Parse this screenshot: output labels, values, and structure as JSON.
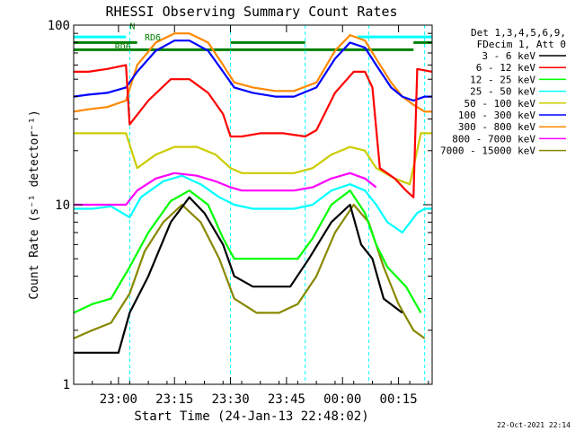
{
  "chart_data": {
    "type": "line",
    "title": "RHESSI Observing Summary Count Rates",
    "xlabel": "Start Time (24-Jan-13 22:48:02)",
    "ylabel": "Count Rate (s⁻¹ detector⁻¹)",
    "y_scale": "log",
    "ylim": [
      1,
      100
    ],
    "xlim": [
      "22:48",
      "00:24"
    ],
    "x_ticks": [
      "23:00",
      "23:15",
      "23:30",
      "23:45",
      "00:00",
      "00:15"
    ],
    "y_ticks": [
      "1",
      "10",
      "100"
    ],
    "grid": false,
    "legend_position": "top-right",
    "legend_header": [
      "Det 1,3,4,5,6,9,",
      "FDecim 1, Att 0"
    ],
    "footer_date": "22-Oct-2021 22:14",
    "annotations": [
      {
        "text": "N",
        "x": "23:03",
        "y": 95
      },
      {
        "text": "RD6",
        "x": "23:07",
        "y": 82
      },
      {
        "text": "RD6",
        "x": "22:59",
        "y": 73
      }
    ],
    "flag_bars": [
      {
        "color": "#00ffff",
        "x_start": "22:48",
        "x_end": "23:02",
        "y": 86
      },
      {
        "color": "#00ffff",
        "x_start": "00:04",
        "x_end": "00:24",
        "y": 86
      },
      {
        "color": "#007f00",
        "x_start": "22:48",
        "x_end": "23:05",
        "y": 80
      },
      {
        "color": "#007f00",
        "x_start": "23:30",
        "x_end": "23:50",
        "y": 80
      },
      {
        "color": "#007f00",
        "x_start": "00:19",
        "x_end": "00:24",
        "y": 80
      },
      {
        "color": "#007f00",
        "x_start": "22:48",
        "x_end": "00:19",
        "y": 73
      }
    ],
    "gap_lines": [
      "23:03",
      "23:30",
      "23:50",
      "00:07",
      "00:22"
    ],
    "series": [
      {
        "name": "3 - 6 keV",
        "color": "#000000",
        "x": [
          "22:48",
          "23:00",
          "23:03",
          "23:08",
          "23:14",
          "23:19",
          "23:23",
          "23:28",
          "23:31",
          "23:36",
          "23:42",
          "23:46",
          "23:51",
          "23:57",
          "00:02",
          "00:05",
          "00:08",
          "00:11",
          "00:16"
        ],
        "y": [
          1.5,
          1.5,
          2.5,
          4,
          8,
          11,
          9,
          6,
          4,
          3.5,
          3.5,
          3.5,
          5,
          8,
          10,
          6,
          5,
          3,
          2.5
        ]
      },
      {
        "name": "6 - 12 keV",
        "color": "#ff0000",
        "x": [
          "22:48",
          "22:52",
          "22:57",
          "23:02",
          "23:03",
          "23:08",
          "23:14",
          "23:19",
          "23:24",
          "23:28",
          "23:30",
          "23:33",
          "23:38",
          "23:44",
          "23:50",
          "23:53",
          "23:58",
          "00:03",
          "00:06",
          "00:08",
          "00:10",
          "00:14",
          "00:17",
          "00:19",
          "00:20",
          "00:24"
        ],
        "y": [
          55,
          55,
          57,
          60,
          28,
          38,
          50,
          50,
          42,
          32,
          24,
          24,
          25,
          25,
          24,
          26,
          42,
          55,
          55,
          45,
          16,
          14,
          12,
          11,
          57,
          55
        ]
      },
      {
        "name": "12 - 25 keV",
        "color": "#00ff00",
        "x": [
          "22:48",
          "22:53",
          "22:58",
          "23:03",
          "23:08",
          "23:14",
          "23:19",
          "23:24",
          "23:28",
          "23:31",
          "23:36",
          "23:43",
          "23:48",
          "23:52",
          "23:57",
          "00:02",
          "00:06",
          "00:09",
          "00:12",
          "00:17",
          "00:21"
        ],
        "y": [
          2.5,
          2.8,
          3,
          4.5,
          7,
          10.5,
          12,
          10,
          6.5,
          5,
          5,
          5,
          5,
          6.5,
          10,
          12,
          9,
          6,
          4.5,
          3.5,
          2.5
        ]
      },
      {
        "name": "25 - 50 keV",
        "color": "#00ffff",
        "x": [
          "22:48",
          "22:53",
          "22:58",
          "23:03",
          "23:06",
          "23:12",
          "23:17",
          "23:22",
          "23:27",
          "23:31",
          "23:36",
          "23:42",
          "23:47",
          "23:52",
          "23:57",
          "00:02",
          "00:06",
          "00:09",
          "00:12",
          "00:16",
          "00:20",
          "00:22",
          "00:24"
        ],
        "y": [
          9.5,
          9.5,
          9.8,
          8.5,
          11,
          13.5,
          14.5,
          13,
          11,
          10,
          9.5,
          9.5,
          9.5,
          10,
          12,
          13,
          12,
          10,
          8,
          7,
          9,
          9.5,
          9.5
        ]
      },
      {
        "name": "50 - 100 keV",
        "color": "#cccc00",
        "x": [
          "22:48",
          "22:55",
          "23:02",
          "23:05",
          "23:10",
          "23:15",
          "23:21",
          "23:26",
          "23:30",
          "23:33",
          "23:40",
          "23:47",
          "23:52",
          "23:57",
          "00:02",
          "00:06",
          "00:09",
          "00:14",
          "00:18",
          "00:21",
          "00:24"
        ],
        "y": [
          25,
          25,
          25,
          16,
          19,
          21,
          21,
          19,
          16,
          15,
          15,
          15,
          16,
          19,
          21,
          20,
          16,
          14,
          13,
          25,
          25
        ]
      },
      {
        "name": "100 - 300 keV",
        "color": "#0000ff",
        "x": [
          "22:48",
          "22:52",
          "22:57",
          "23:02",
          "23:05",
          "23:10",
          "23:15",
          "23:19",
          "23:24",
          "23:28",
          "23:31",
          "23:36",
          "23:42",
          "23:47",
          "23:53",
          "23:58",
          "00:02",
          "00:06",
          "00:09",
          "00:13",
          "00:16",
          "00:19",
          "00:22",
          "00:24"
        ],
        "y": [
          40,
          41,
          42,
          45,
          55,
          72,
          82,
          82,
          72,
          55,
          45,
          42,
          40,
          40,
          45,
          65,
          80,
          75,
          60,
          45,
          40,
          38,
          40,
          40
        ]
      },
      {
        "name": "300 - 800 keV",
        "color": "#ff8800",
        "x": [
          "22:48",
          "22:52",
          "22:57",
          "23:02",
          "23:05",
          "23:10",
          "23:15",
          "23:19",
          "23:24",
          "23:28",
          "23:31",
          "23:36",
          "23:42",
          "23:47",
          "23:53",
          "23:58",
          "00:02",
          "00:06",
          "00:09",
          "00:13",
          "00:16",
          "00:19",
          "00:22",
          "00:24"
        ],
        "y": [
          33,
          34,
          35,
          38,
          60,
          80,
          90,
          90,
          80,
          60,
          48,
          45,
          43,
          43,
          48,
          72,
          88,
          82,
          65,
          48,
          40,
          36,
          33,
          33
        ]
      },
      {
        "name": "800 - 7000 keV",
        "color": "#ff00ff",
        "x": [
          "22:48",
          "22:55",
          "23:02",
          "23:05",
          "23:10",
          "23:15",
          "23:21",
          "23:26",
          "23:30",
          "23:33",
          "23:40",
          "23:47",
          "23:52",
          "23:57",
          "00:02",
          "00:06",
          "00:09"
        ],
        "y": [
          10,
          10,
          10,
          12,
          14,
          15,
          14.5,
          13.5,
          12.5,
          12,
          12,
          12,
          12.5,
          14,
          15,
          14,
          12.5
        ]
      },
      {
        "name": "7000 - 15000 keV",
        "color": "#888800",
        "x": [
          "22:48",
          "22:53",
          "22:58",
          "23:03",
          "23:07",
          "23:12",
          "23:17",
          "23:22",
          "23:27",
          "23:31",
          "23:37",
          "23:43",
          "23:48",
          "23:53",
          "23:58",
          "00:03",
          "00:07",
          "00:11",
          "00:15",
          "00:19",
          "00:22"
        ],
        "y": [
          1.8,
          2,
          2.2,
          3.2,
          5.5,
          8,
          10,
          8,
          5,
          3,
          2.5,
          2.5,
          2.8,
          4,
          7,
          10,
          8,
          4.5,
          2.8,
          2,
          1.8
        ]
      }
    ]
  }
}
